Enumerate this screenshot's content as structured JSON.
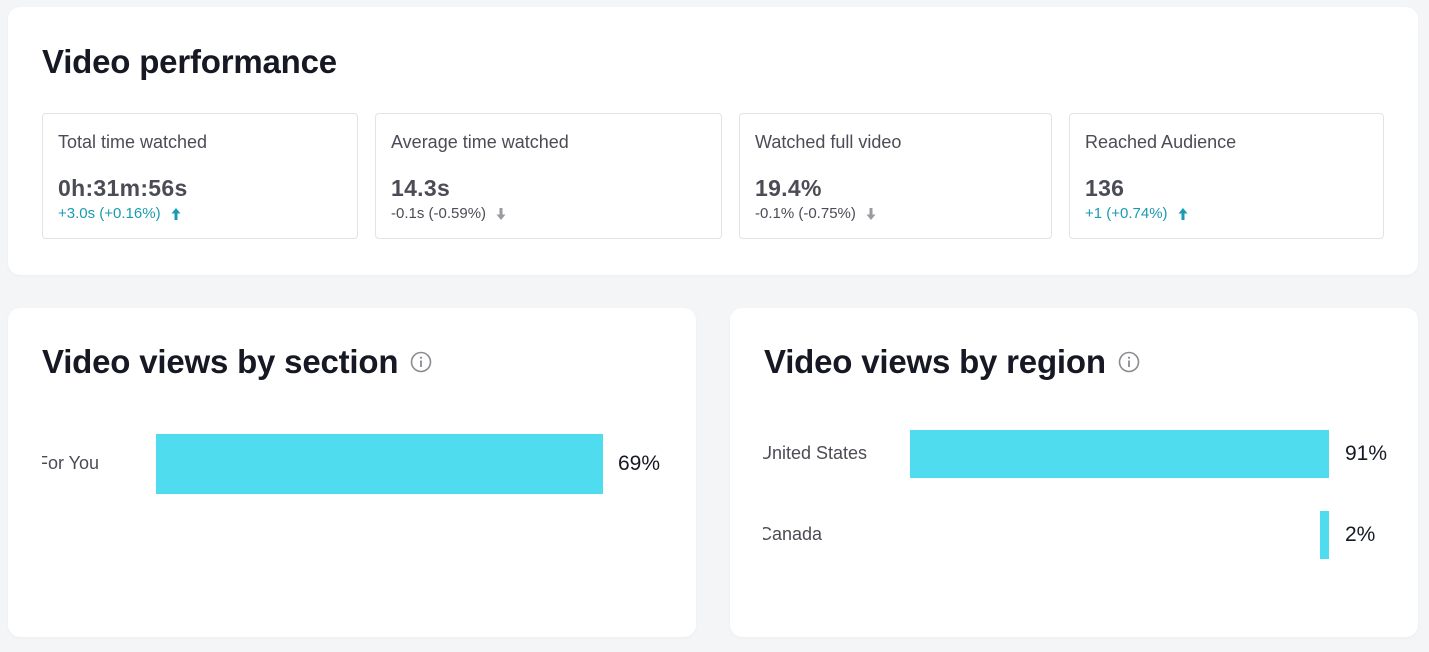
{
  "performance": {
    "title": "Video performance",
    "metrics": [
      {
        "label": "Total time watched",
        "value": "0h:31m:56s",
        "delta": "+3.0s (+0.16%)",
        "trend": "up"
      },
      {
        "label": "Average time watched",
        "value": "14.3s",
        "delta": "-0.1s (-0.59%)",
        "trend": "down"
      },
      {
        "label": "Watched full video",
        "value": "19.4%",
        "delta": "-0.1% (-0.75%)",
        "trend": "down"
      },
      {
        "label": "Reached Audience",
        "value": "136",
        "delta": "+1 (+0.74%)",
        "trend": "up"
      }
    ]
  },
  "section": {
    "title": "Video views by section",
    "info_icon": "info-icon",
    "chart_data": {
      "type": "bar",
      "orientation": "horizontal",
      "categories": [
        "For You"
      ],
      "values": [
        69
      ],
      "value_labels": [
        "69%"
      ]
    }
  },
  "region": {
    "title": "Video views by region",
    "info_icon": "info-icon",
    "chart_data": {
      "type": "bar",
      "orientation": "horizontal",
      "categories": [
        "United States",
        "Canada"
      ],
      "values": [
        91,
        2
      ],
      "value_labels": [
        "91%",
        "2%"
      ]
    }
  },
  "colors": {
    "bar": "#4fdcef",
    "up": "#1b9bb3",
    "down": "#4b4c55",
    "arrow_down": "#9a9ba1"
  }
}
